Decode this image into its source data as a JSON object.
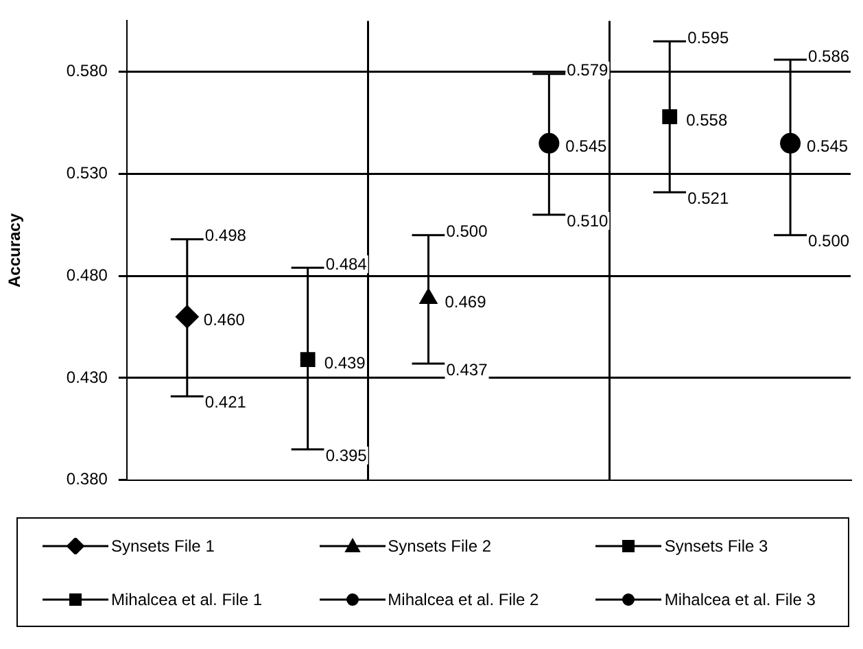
{
  "chart_data": {
    "type": "line",
    "ylabel": "Accuracy",
    "categories": [
      null,
      null,
      null,
      null,
      null,
      null
    ],
    "ylim": [
      0.38,
      0.605
    ],
    "yticks": [
      {
        "value": 0.38,
        "label": "0.380"
      },
      {
        "value": 0.43,
        "label": "0.430"
      },
      {
        "value": 0.48,
        "label": "0.480"
      },
      {
        "value": 0.53,
        "label": "0.530"
      },
      {
        "value": 0.58,
        "label": "0.580"
      }
    ],
    "grid": true,
    "legend": "bottom",
    "tick_labels": "y",
    "series": [
      {
        "name": "Synsets File 1",
        "color": "#000000",
        "marker": "diamond",
        "values": [
          0.46,
          null,
          null,
          null,
          null,
          null
        ],
        "value_labels": [
          "0.460",
          null,
          null,
          null,
          null,
          null
        ],
        "errors": [
          [
            0.421,
            0.498
          ],
          null,
          null,
          null,
          null,
          null
        ]
      },
      {
        "name": "Synsets File 2",
        "color": "#000000",
        "marker": "triangle",
        "values": [
          null,
          null,
          0.469,
          null,
          null,
          null
        ],
        "value_labels": [
          null,
          null,
          "0.469",
          null,
          null,
          null
        ],
        "errors": [
          null,
          null,
          [
            0.437,
            0.5
          ],
          null,
          null,
          null
        ]
      },
      {
        "name": "Synsets File 3",
        "color": "#000000",
        "marker": "square",
        "values": [
          null,
          null,
          null,
          null,
          0.558,
          null
        ],
        "value_labels": [
          null,
          null,
          null,
          null,
          "0.558",
          null
        ],
        "errors": [
          null,
          null,
          null,
          null,
          [
            0.521,
            0.595
          ],
          null
        ]
      },
      {
        "name": "Mihalcea et al. File 1",
        "color": "#000000",
        "marker": "square",
        "values": [
          null,
          0.439,
          null,
          null,
          null,
          null
        ],
        "value_labels": [
          null,
          "0.439",
          null,
          null,
          null,
          null
        ],
        "errors": [
          null,
          [
            0.395,
            0.484
          ],
          null,
          null,
          null,
          null
        ]
      },
      {
        "name": "Mihalcea et al. File 2",
        "color": "#000000",
        "marker": "circle",
        "values": [
          null,
          null,
          null,
          0.545,
          null,
          null
        ],
        "value_labels": [
          null,
          null,
          null,
          "0.545",
          null,
          null
        ],
        "errors": [
          null,
          null,
          null,
          [
            0.51,
            0.579
          ],
          null,
          null
        ]
      },
      {
        "name": "Mihalcea et al. File 3",
        "color": "#000000",
        "marker": "circle",
        "values": [
          null,
          null,
          null,
          null,
          null,
          0.545
        ],
        "value_labels": [
          null,
          null,
          null,
          null,
          null,
          "0.545"
        ],
        "errors": [
          null,
          null,
          null,
          null,
          null,
          [
            0.5,
            0.586
          ]
        ]
      }
    ],
    "annotations": [
      "0.421",
      "0.498",
      "0.437",
      "0.500",
      "0.521",
      "0.595",
      "0.395",
      "0.484",
      "0.510",
      "0.579",
      "0.500",
      "0.586"
    ]
  }
}
